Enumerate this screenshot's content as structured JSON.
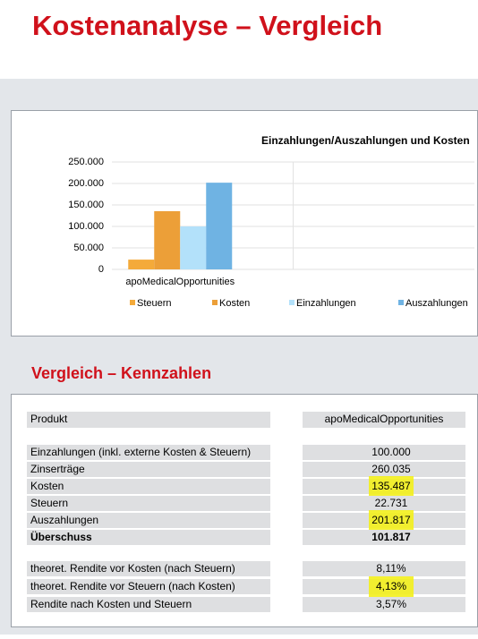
{
  "title": "Kostenanalyse – Vergleich",
  "chart_data": {
    "type": "bar",
    "title": "Einzahlungen/Auszahlungen und Kosten",
    "categories": [
      "apoMedicalOpportunities",
      null
    ],
    "series": [
      {
        "name": "Steuern",
        "color": "#f4aa3a",
        "values": [
          22731,
          null
        ]
      },
      {
        "name": "Kosten",
        "color": "#ec9f38",
        "values": [
          135487,
          null
        ]
      },
      {
        "name": "Einzahlungen",
        "color": "#b3e1fa",
        "values": [
          100000,
          null
        ]
      },
      {
        "name": "Auszahlungen",
        "color": "#6fb3e3",
        "values": [
          201817,
          null
        ]
      }
    ],
    "ylim": [
      0,
      250000
    ],
    "yticks": [
      0,
      {
        "value": 50000,
        "label": "50.000"
      },
      {
        "value": 100000,
        "label": "100.000"
      },
      {
        "value": 150000,
        "label": "150.000"
      },
      {
        "value": 200000,
        "label": "200.000"
      },
      {
        "value": 250000,
        "label": "250.000"
      }
    ],
    "grid": true,
    "legend": "bottom"
  },
  "section_title": "Vergleich – Kennzahlen",
  "table": {
    "header": [
      "Produkt",
      "apoMedicalOpportunities"
    ],
    "groups": [
      [
        {
          "label": "Einzahlungen (inkl. externe Kosten & Steuern)",
          "value": "100.000"
        },
        {
          "label": "Zinserträge",
          "value": "260.035"
        },
        {
          "label": "Kosten",
          "value": "135.487",
          "highlight": true
        },
        {
          "label": "Steuern",
          "value": "22.731"
        },
        {
          "label": "Auszahlungen",
          "value": "201.817",
          "highlight": true
        },
        {
          "label": "Überschuss",
          "value": "101.817",
          "bold": true
        }
      ],
      [
        {
          "label": "theoret. Rendite vor Kosten (nach Steuern)",
          "value": "8,11%"
        },
        {
          "label": "theoret. Rendite vor Steuern (nach Kosten)",
          "value": "4,13%",
          "highlight": true
        },
        {
          "label": "Rendite nach Kosten und Steuern",
          "value": "3,57%"
        }
      ]
    ]
  }
}
